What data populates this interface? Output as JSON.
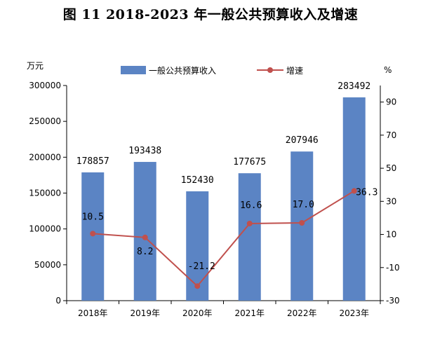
{
  "title": "图 11   2018-2023 年一般公共预算收入及增速",
  "chart_data": {
    "type": "bar",
    "title": "图 11   2018-2023 年一般公共预算收入及增速",
    "categories": [
      "2018年",
      "2019年",
      "2020年",
      "2021年",
      "2022年",
      "2023年"
    ],
    "series": [
      {
        "name": "一般公共预算收入",
        "type": "bar",
        "axis": "left",
        "color": "#5b84c4",
        "values": [
          178857,
          193438,
          152430,
          177675,
          207946,
          283492
        ],
        "labels": [
          "178857",
          "193438",
          "152430",
          "177675",
          "207946",
          "283492"
        ]
      },
      {
        "name": "增速",
        "type": "line",
        "axis": "right",
        "color": "#c0504d",
        "values": [
          10.5,
          8.2,
          -21.2,
          16.6,
          17.0,
          36.3
        ],
        "labels": [
          "10.5",
          "8.2",
          "-21.2",
          "16.6",
          "17.0",
          "36.3"
        ]
      }
    ],
    "y_left": {
      "unit": "万元",
      "ylim": [
        0,
        300000
      ],
      "ticks": [
        0,
        50000,
        100000,
        150000,
        200000,
        250000,
        300000
      ]
    },
    "y_right": {
      "unit": "%",
      "ylim": [
        -30,
        100
      ],
      "ticks": [
        -30,
        -10,
        10,
        30,
        50,
        70,
        90
      ]
    },
    "legend": "top-center",
    "grid": false
  }
}
